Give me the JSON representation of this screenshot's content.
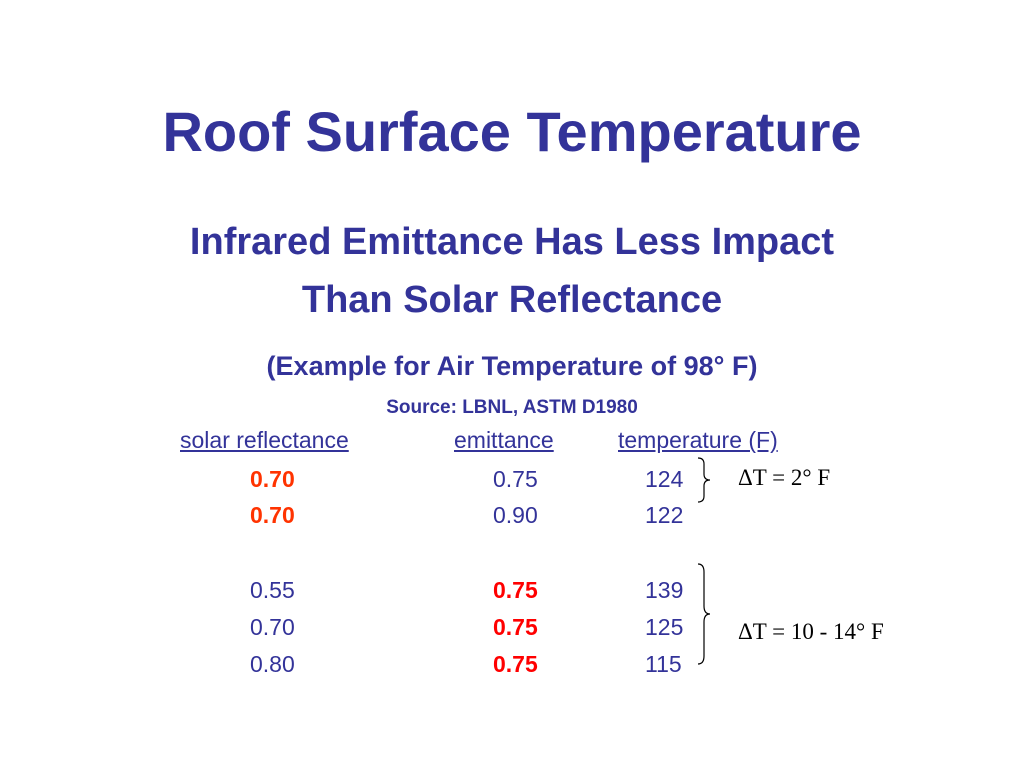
{
  "slide": {
    "title": "Roof Surface Temperature",
    "subtitle_line1": "Infrared Emittance Has Less Impact",
    "subtitle_line2": "Than Solar Reflectance",
    "example": "(Example for Air Temperature of 98° F)",
    "source": "Source: LBNL, ASTM D1980"
  },
  "table": {
    "headers": {
      "solar": "solar reflectance",
      "emittance": "emittance",
      "temperature": "temperature (F)"
    },
    "rows": [
      {
        "solar": "0.70",
        "emittance": "0.75",
        "temperature": "124"
      },
      {
        "solar": "0.70",
        "emittance": "0.90",
        "temperature": "122"
      },
      {
        "solar": "0.55",
        "emittance": "0.75",
        "temperature": "139"
      },
      {
        "solar": "0.70",
        "emittance": "0.75",
        "temperature": "125"
      },
      {
        "solar": "0.80",
        "emittance": "0.75",
        "temperature": "115"
      }
    ]
  },
  "annotations": {
    "group1": "ΔT = 2° F",
    "group2": "ΔT = 10 - 14° F"
  },
  "colors": {
    "text": "#333399",
    "highlight": "#ff3300",
    "annotation": "#000000"
  }
}
